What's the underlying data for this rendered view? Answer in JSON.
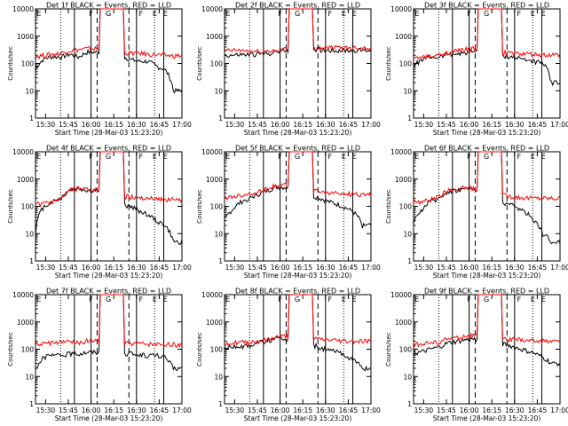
{
  "figure": {
    "xlabel": "Start Time (28-Mar-03 15:23:20)",
    "ylabel": "Counts/sec",
    "time_ticks": [
      "15:30",
      "15:45",
      "16:00",
      "16:15",
      "16:30",
      "16:45",
      "17:00"
    ],
    "y_ticks": [
      "1",
      "10",
      "100",
      "1000",
      "10000"
    ],
    "marker_letters": [
      "E",
      "F",
      "G",
      "F",
      "E",
      "E"
    ]
  },
  "colors": {
    "events": "#000000",
    "lld": "#ff0000"
  },
  "chart_data": [
    {
      "type": "line",
      "panel": "1f",
      "title": "Det 1f BLACK = Events, RED = LLD",
      "xlim": [
        "15:23:20",
        "17:00"
      ],
      "ylim": [
        1,
        10000
      ],
      "log_y": true,
      "x_minutes": [],
      "series": [
        {
          "key": "events",
          "base": [
            60,
            150,
            180,
            170,
            220,
            170,
            260,
            260,
            240,
            200,
            180,
            140,
            120,
            120,
            80,
            60,
            10,
            10
          ],
          "peak": 12000
        },
        {
          "key": "lld",
          "base": [
            180,
            200,
            220,
            240,
            300,
            320,
            350,
            350,
            300,
            260,
            260,
            240,
            240,
            220,
            210,
            200,
            190,
            190
          ],
          "peak": 12000
        }
      ]
    },
    {
      "type": "line",
      "panel": "2f",
      "title": "Det 2f BLACK = Events, RED = LLD",
      "xlim": [
        "15:23:20",
        "17:00"
      ],
      "ylim": [
        1,
        10000
      ],
      "log_y": true,
      "series": [
        {
          "key": "events",
          "base": [
            200,
            200,
            210,
            210,
            220,
            230,
            260,
            300,
            330,
            330,
            330,
            320,
            310,
            300,
            300,
            300,
            300,
            300
          ],
          "peak": 12000
        },
        {
          "key": "lld",
          "base": [
            300,
            300,
            300,
            280,
            270,
            280,
            300,
            330,
            360,
            360,
            380,
            380,
            380,
            380,
            380,
            380,
            380,
            380
          ],
          "peak": 12000
        }
      ]
    },
    {
      "type": "line",
      "panel": "3f",
      "title": "Det 3f BLACK = Events, RED = LLD",
      "xlim": [
        "15:23:20",
        "17:00"
      ],
      "ylim": [
        1,
        10000
      ],
      "log_y": true,
      "series": [
        {
          "key": "events",
          "base": [
            80,
            140,
            170,
            170,
            230,
            220,
            250,
            280,
            240,
            220,
            200,
            180,
            160,
            140,
            120,
            100,
            20,
            20
          ],
          "peak": 12000
        },
        {
          "key": "lld",
          "base": [
            150,
            170,
            180,
            200,
            260,
            280,
            330,
            350,
            300,
            260,
            260,
            240,
            230,
            220,
            210,
            200,
            200,
            200
          ],
          "peak": 12000
        }
      ]
    },
    {
      "type": "line",
      "panel": "4f",
      "title": "Det 4f BLACK = Events, RED = LLD",
      "xlim": [
        "15:23:20",
        "17:00"
      ],
      "ylim": [
        1,
        10000
      ],
      "log_y": true,
      "series": [
        {
          "key": "events",
          "base": [
            10,
            100,
            150,
            200,
            400,
            450,
            380,
            380,
            300,
            150,
            120,
            100,
            70,
            50,
            30,
            20,
            5,
            5
          ],
          "peak": 12000
        },
        {
          "key": "lld",
          "base": [
            120,
            120,
            150,
            200,
            400,
            450,
            420,
            400,
            350,
            260,
            240,
            220,
            200,
            200,
            190,
            180,
            180,
            180
          ],
          "peak": 12000
        }
      ]
    },
    {
      "type": "line",
      "panel": "5f",
      "title": "Det 5f BLACK = Events, RED = LLD",
      "xlim": [
        "15:23:20",
        "17:00"
      ],
      "ylim": [
        1,
        10000
      ],
      "log_y": true,
      "series": [
        {
          "key": "events",
          "base": [
            30,
            80,
            150,
            200,
            280,
            380,
            500,
            500,
            400,
            300,
            250,
            200,
            150,
            120,
            90,
            60,
            20,
            20
          ],
          "peak": 12000
        },
        {
          "key": "lld",
          "base": [
            200,
            220,
            250,
            280,
            350,
            450,
            600,
            600,
            500,
            400,
            360,
            340,
            320,
            300,
            290,
            280,
            270,
            270
          ],
          "peak": 12000
        }
      ]
    },
    {
      "type": "line",
      "panel": "6f",
      "title": "Det 6f BLACK = Events, RED = LLD",
      "xlim": [
        "15:23:20",
        "17:00"
      ],
      "ylim": [
        1,
        10000
      ],
      "log_y": true,
      "series": [
        {
          "key": "events",
          "base": [
            20,
            80,
            150,
            200,
            350,
            400,
            450,
            420,
            300,
            200,
            160,
            120,
            90,
            60,
            30,
            10,
            5,
            5
          ],
          "peak": 12000
        },
        {
          "key": "lld",
          "base": [
            150,
            150,
            180,
            220,
            400,
            450,
            480,
            450,
            360,
            280,
            260,
            240,
            220,
            210,
            200,
            200,
            200,
            200
          ],
          "peak": 12000
        }
      ]
    },
    {
      "type": "line",
      "panel": "7f",
      "title": "Det 7f BLACK = Events, RED = LLD",
      "xlim": [
        "15:23:20",
        "17:00"
      ],
      "ylim": [
        1,
        10000
      ],
      "log_y": true,
      "series": [
        {
          "key": "events",
          "base": [
            20,
            50,
            60,
            60,
            70,
            70,
            80,
            80,
            80,
            70,
            70,
            70,
            60,
            60,
            60,
            50,
            20,
            20
          ],
          "peak": 12000
        },
        {
          "key": "lld",
          "base": [
            150,
            160,
            170,
            180,
            180,
            180,
            200,
            200,
            180,
            170,
            170,
            160,
            160,
            150,
            150,
            150,
            150,
            150
          ],
          "peak": 12000
        }
      ]
    },
    {
      "type": "line",
      "panel": "8f",
      "title": "Det 8f BLACK = Events, RED = LLD",
      "xlim": [
        "15:23:20",
        "17:00"
      ],
      "ylim": [
        1,
        10000
      ],
      "log_y": true,
      "series": [
        {
          "key": "events",
          "base": [
            120,
            120,
            130,
            140,
            180,
            200,
            240,
            240,
            200,
            180,
            150,
            120,
            90,
            80,
            60,
            40,
            20,
            20
          ],
          "peak": 12000
        },
        {
          "key": "lld",
          "base": [
            170,
            170,
            180,
            180,
            200,
            220,
            280,
            300,
            280,
            260,
            240,
            230,
            220,
            210,
            200,
            200,
            200,
            200
          ],
          "peak": 12000
        }
      ]
    },
    {
      "type": "line",
      "panel": "9f",
      "title": "Det 9f BLACK = Events, RED = LLD",
      "xlim": [
        "15:23:20",
        "17:00"
      ],
      "ylim": [
        1,
        10000
      ],
      "log_y": true,
      "series": [
        {
          "key": "events",
          "base": [
            70,
            80,
            100,
            120,
            170,
            190,
            220,
            240,
            220,
            180,
            160,
            140,
            110,
            90,
            70,
            50,
            30,
            30
          ],
          "peak": 12000
        },
        {
          "key": "lld",
          "base": [
            150,
            160,
            170,
            180,
            240,
            260,
            300,
            320,
            300,
            260,
            240,
            230,
            220,
            210,
            200,
            200,
            200,
            200
          ],
          "peak": 12000
        }
      ]
    }
  ]
}
